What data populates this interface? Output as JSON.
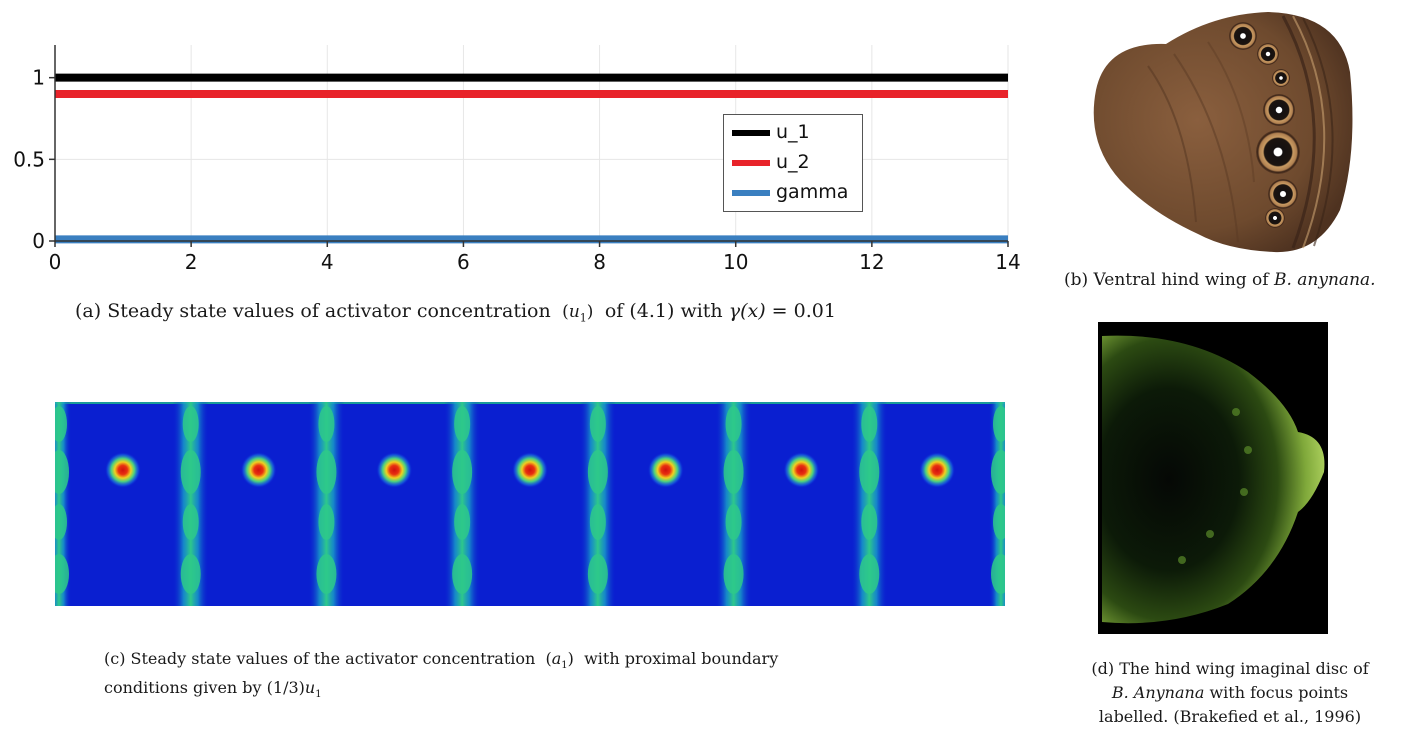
{
  "panel_a": {
    "caption_prefix": "(a)   Steady state values of activator concentration",
    "caption_var": "u",
    "caption_sub": "1",
    "caption_mid": "of (4.1) with",
    "caption_eq": "γ(x)",
    "caption_val": "= 0.01"
  },
  "panel_b": {
    "caption_prefix": "(b) Ventral hind wing of",
    "caption_species": "B. anynana."
  },
  "panel_c": {
    "caption_line1_prefix": "(c) Steady state values of the activator concentration",
    "caption_var": "a",
    "caption_sub": "1",
    "caption_line1_suffix": "with proximal boundary",
    "caption_line2_prefix": "conditions given by",
    "caption_line2_expr": "(1/3)",
    "caption_line2_var": "u",
    "caption_line2_sub": "1"
  },
  "panel_d": {
    "caption_line1": "(d)  The hind wing imaginal disc of",
    "caption_line2_species": "B. Anynana",
    "caption_line2_suffix": "with  focus points",
    "caption_line3": "labelled. (Brakefied et al., 1996)"
  },
  "colors": {
    "u_1": "#000000",
    "u_2": "#e8232a",
    "gamma": "#3a7fc0",
    "heat_bg": "#0a1fd0",
    "heat_band": "#2ec98a"
  },
  "heatmap": {
    "spot_count": 7,
    "band_count": 8
  },
  "chart_data": {
    "type": "line",
    "xlim": [
      0,
      14
    ],
    "ylim": [
      0,
      1.2
    ],
    "x_ticks": [
      "0",
      "2",
      "4",
      "6",
      "8",
      "10",
      "12",
      "14"
    ],
    "y_ticks": [
      "0",
      "0.5",
      "1"
    ],
    "y_tick_values": [
      0,
      0.5,
      1
    ],
    "x_tick_values": [
      0,
      2,
      4,
      6,
      8,
      10,
      12,
      14
    ],
    "grid": true,
    "legend_position": "top-right",
    "series": [
      {
        "name": "u_1",
        "x": [
          0,
          14
        ],
        "values": [
          1.0,
          1.0
        ]
      },
      {
        "name": "u_2",
        "x": [
          0,
          14
        ],
        "values": [
          0.9,
          0.9
        ]
      },
      {
        "name": "gamma",
        "x": [
          0,
          14
        ],
        "values": [
          0.01,
          0.01
        ]
      }
    ]
  }
}
